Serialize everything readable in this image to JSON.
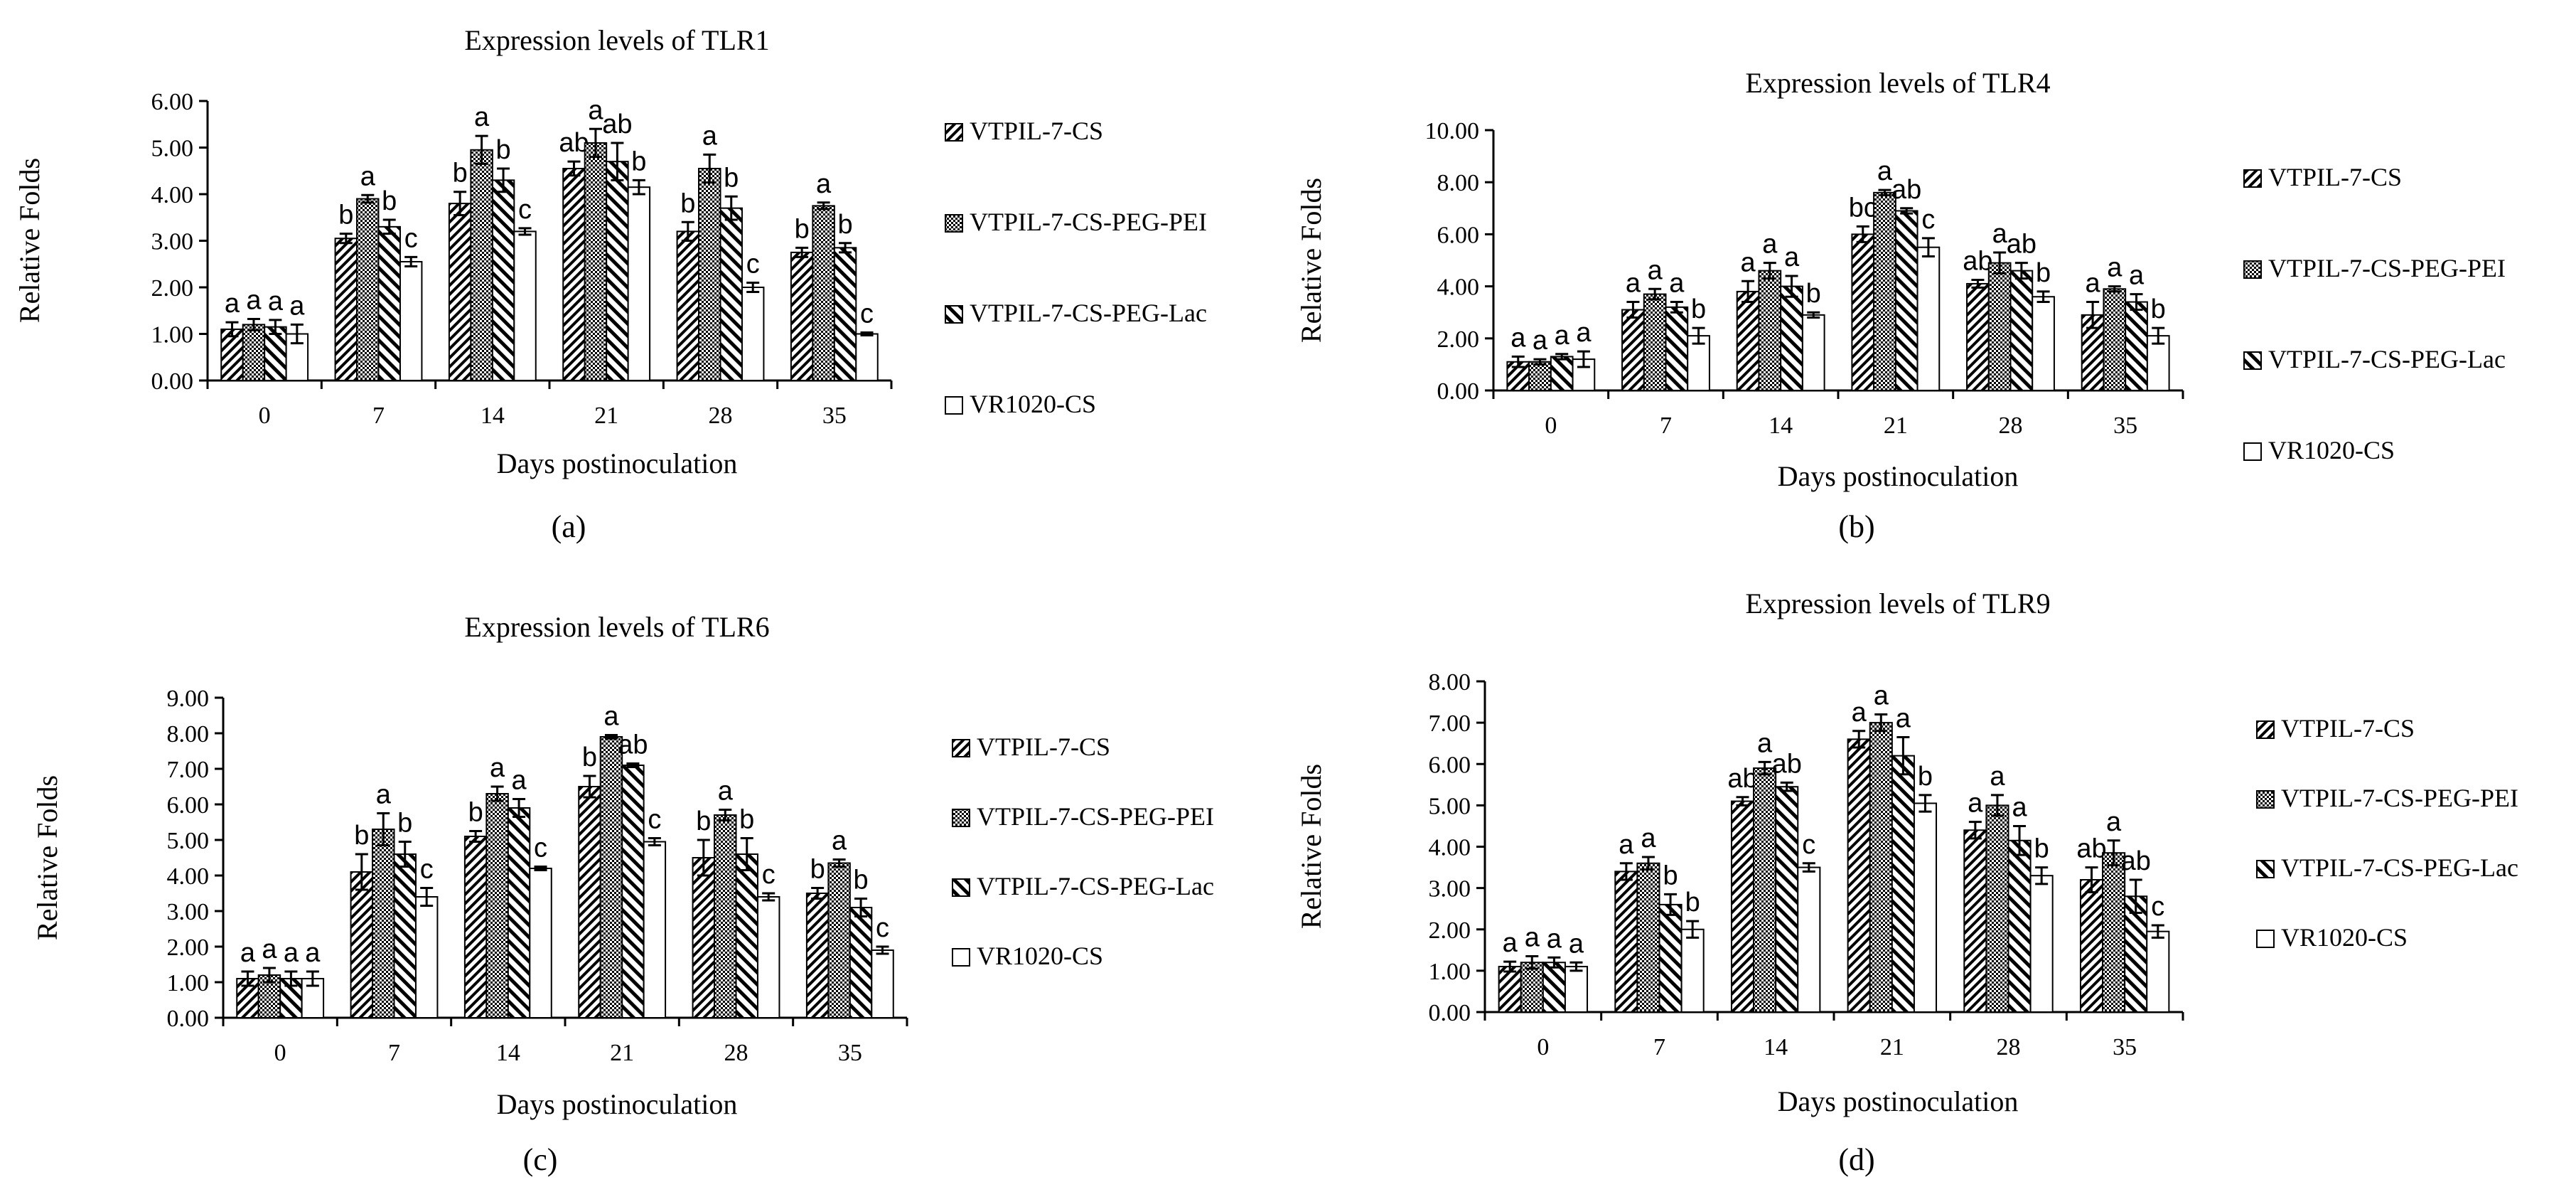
{
  "chart_data": [
    {
      "type": "bar",
      "title": "Expression levels of TLR1",
      "xlabel": "Days postinoculation",
      "ylabel": "Relative Folds",
      "caption": "(a)",
      "categories": [
        "0",
        "7",
        "14",
        "21",
        "28",
        "35"
      ],
      "yticks": [
        "0.00",
        "1.00",
        "2.00",
        "3.00",
        "4.00",
        "5.00",
        "6.00"
      ],
      "ylim": [
        0,
        6
      ],
      "series": [
        {
          "name": "VTPIL-7-CS",
          "values": [
            1.1,
            3.05,
            3.8,
            4.55,
            3.2,
            2.75
          ],
          "errors": [
            0.15,
            0.1,
            0.25,
            0.15,
            0.2,
            0.1
          ],
          "letters": [
            "a",
            "b",
            "b",
            "ab",
            "b",
            "b"
          ]
        },
        {
          "name": "VTPIL-7-CS-PEG-PEI",
          "values": [
            1.2,
            3.9,
            4.95,
            5.1,
            4.55,
            3.75
          ],
          "errors": [
            0.12,
            0.08,
            0.3,
            0.3,
            0.3,
            0.07
          ],
          "letters": [
            "a",
            "a",
            "a",
            "a",
            "a",
            "a"
          ]
        },
        {
          "name": "VTPIL-7-CS-PEG-Lac",
          "values": [
            1.15,
            3.3,
            4.3,
            4.7,
            3.7,
            2.85
          ],
          "errors": [
            0.15,
            0.15,
            0.25,
            0.4,
            0.25,
            0.1
          ],
          "letters": [
            "a",
            "b",
            "b",
            "ab",
            "b",
            "b"
          ]
        },
        {
          "name": "VR1020-CS",
          "values": [
            1.0,
            2.55,
            3.2,
            4.15,
            2.0,
            1.0
          ],
          "errors": [
            0.2,
            0.1,
            0.07,
            0.15,
            0.1,
            0.03
          ],
          "letters": [
            "a",
            "c",
            "c",
            "b",
            "c",
            "c"
          ]
        }
      ]
    },
    {
      "type": "bar",
      "title": "Expression levels of TLR4",
      "xlabel": "Days postinoculation",
      "ylabel": "Relative Folds",
      "caption": "(b)",
      "categories": [
        "0",
        "7",
        "14",
        "21",
        "28",
        "35"
      ],
      "yticks": [
        "0.00",
        "2.00",
        "4.00",
        "6.00",
        "8.00",
        "10.00"
      ],
      "ylim": [
        0,
        10
      ],
      "series": [
        {
          "name": "VTPIL-7-CS",
          "values": [
            1.1,
            3.1,
            3.8,
            6.0,
            4.1,
            2.9
          ],
          "errors": [
            0.2,
            0.3,
            0.4,
            0.3,
            0.15,
            0.5
          ],
          "letters": [
            "a",
            "a",
            "a",
            "bc",
            "ab",
            "a"
          ]
        },
        {
          "name": "VTPIL-7-CS-PEG-PEI",
          "values": [
            1.1,
            3.7,
            4.6,
            7.6,
            4.9,
            3.9
          ],
          "errors": [
            0.1,
            0.2,
            0.3,
            0.1,
            0.4,
            0.1
          ],
          "letters": [
            "a",
            "a",
            "a",
            "a",
            "a",
            "a"
          ]
        },
        {
          "name": "VTPIL-7-CS-PEG-Lac",
          "values": [
            1.3,
            3.2,
            4.0,
            6.9,
            4.6,
            3.4
          ],
          "errors": [
            0.1,
            0.2,
            0.4,
            0.1,
            0.3,
            0.3
          ],
          "letters": [
            "a",
            "a",
            "a",
            "ab",
            "ab",
            "a"
          ]
        },
        {
          "name": "VR1020-CS",
          "values": [
            1.2,
            2.1,
            2.9,
            5.5,
            3.6,
            2.1
          ],
          "errors": [
            0.3,
            0.3,
            0.1,
            0.35,
            0.2,
            0.3
          ],
          "letters": [
            "a",
            "b",
            "b",
            "c",
            "b",
            "b"
          ]
        }
      ]
    },
    {
      "type": "bar",
      "title": "Expression levels of TLR6",
      "xlabel": "Days postinoculation",
      "ylabel": "Relative Folds",
      "caption": "(c)",
      "categories": [
        "0",
        "7",
        "14",
        "21",
        "28",
        "35"
      ],
      "yticks": [
        "0.00",
        "1.00",
        "2.00",
        "3.00",
        "4.00",
        "5.00",
        "6.00",
        "7.00",
        "8.00",
        "9.00"
      ],
      "ylim": [
        0,
        9
      ],
      "series": [
        {
          "name": "VTPIL-7-CS",
          "values": [
            1.1,
            4.1,
            5.1,
            6.5,
            4.5,
            3.5
          ],
          "errors": [
            0.2,
            0.5,
            0.15,
            0.3,
            0.5,
            0.15
          ],
          "letters": [
            "a",
            "b",
            "b",
            "b",
            "b",
            "b"
          ]
        },
        {
          "name": "VTPIL-7-CS-PEG-PEI",
          "values": [
            1.2,
            5.3,
            6.3,
            7.9,
            5.7,
            4.35
          ],
          "errors": [
            0.2,
            0.45,
            0.2,
            0.05,
            0.15,
            0.1
          ],
          "letters": [
            "a",
            "a",
            "a",
            "a",
            "a",
            "a"
          ]
        },
        {
          "name": "VTPIL-7-CS-PEG-Lac",
          "values": [
            1.1,
            4.6,
            5.9,
            7.1,
            4.6,
            3.1
          ],
          "errors": [
            0.2,
            0.35,
            0.25,
            0.05,
            0.45,
            0.25
          ],
          "letters": [
            "a",
            "b",
            "a",
            "ab",
            "b",
            "b"
          ]
        },
        {
          "name": "VR1020-CS",
          "values": [
            1.1,
            3.4,
            4.2,
            4.95,
            3.4,
            1.9
          ],
          "errors": [
            0.2,
            0.25,
            0.05,
            0.1,
            0.1,
            0.1
          ],
          "letters": [
            "a",
            "c",
            "c",
            "c",
            "c",
            "c"
          ]
        }
      ]
    },
    {
      "type": "bar",
      "title": "Expression levels of TLR9",
      "xlabel": "Days postinoculation",
      "ylabel": "Relative Folds",
      "caption": "(d)",
      "categories": [
        "0",
        "7",
        "14",
        "21",
        "28",
        "35"
      ],
      "yticks": [
        "0.00",
        "1.00",
        "2.00",
        "3.00",
        "4.00",
        "5.00",
        "6.00",
        "7.00",
        "8.00"
      ],
      "ylim": [
        0,
        8
      ],
      "series": [
        {
          "name": "VTPIL-7-CS",
          "values": [
            1.1,
            3.4,
            5.1,
            6.6,
            4.4,
            3.2
          ],
          "errors": [
            0.12,
            0.2,
            0.1,
            0.2,
            0.2,
            0.3
          ],
          "letters": [
            "a",
            "a",
            "ab",
            "a",
            "a",
            "ab"
          ]
        },
        {
          "name": "VTPIL-7-CS-PEG-PEI",
          "values": [
            1.2,
            3.6,
            5.9,
            7.0,
            5.0,
            3.85
          ],
          "errors": [
            0.15,
            0.15,
            0.15,
            0.2,
            0.25,
            0.3
          ],
          "letters": [
            "a",
            "a",
            "a",
            "a",
            "a",
            "a"
          ]
        },
        {
          "name": "VTPIL-7-CS-PEG-Lac",
          "values": [
            1.2,
            2.6,
            5.45,
            6.2,
            4.15,
            2.8
          ],
          "errors": [
            0.12,
            0.25,
            0.1,
            0.45,
            0.35,
            0.4
          ],
          "letters": [
            "a",
            "b",
            "ab",
            "a",
            "a",
            "ab"
          ]
        },
        {
          "name": "VR1020-CS",
          "values": [
            1.1,
            2.0,
            3.5,
            5.05,
            3.3,
            1.95
          ],
          "errors": [
            0.1,
            0.2,
            0.1,
            0.2,
            0.2,
            0.15
          ],
          "letters": [
            "a",
            "b",
            "c",
            "b",
            "b",
            "c"
          ]
        }
      ]
    }
  ]
}
